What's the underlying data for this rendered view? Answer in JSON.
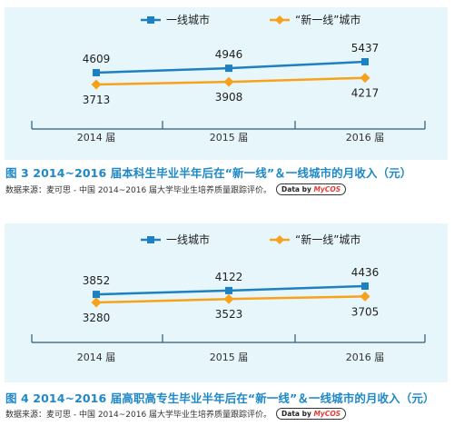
{
  "colors": {
    "first_tier": "#1e7fc1",
    "new_first_tier": "#f7a21b",
    "caption": "#1e88c8",
    "axis": "#2c5b7a",
    "panel_bg": "#e6f6fb"
  },
  "source_text": "数据来源：麦可思 - 中国 2014~2016 届大学毕业生培养质量跟踪评价。",
  "badge": {
    "prefix": "Data by ",
    "brand": "MyCOS"
  },
  "chart_data": [
    {
      "type": "line",
      "title": "图 3  2014~2016 届本科生毕业半年后在“新一线”＆一线城市的月收入（元）",
      "categories": [
        "2014 届",
        "2015 届",
        "2016 届"
      ],
      "legend_position": "top",
      "grid": false,
      "series": [
        {
          "name": "一线城市",
          "values": [
            4609,
            4946,
            5437
          ]
        },
        {
          "name": "“新一线”城市",
          "values": [
            3713,
            3908,
            4217
          ]
        }
      ]
    },
    {
      "type": "line",
      "title": "图 4  2014~2016 届高职高专生毕业半年后在“新一线”＆一线城市的月收入（元）",
      "categories": [
        "2014 届",
        "2015 届",
        "2016 届"
      ],
      "legend_position": "top",
      "grid": false,
      "series": [
        {
          "name": "一线城市",
          "values": [
            3852,
            4122,
            4436
          ]
        },
        {
          "name": "“新一线”城市",
          "values": [
            3280,
            3523,
            3705
          ]
        }
      ]
    }
  ]
}
